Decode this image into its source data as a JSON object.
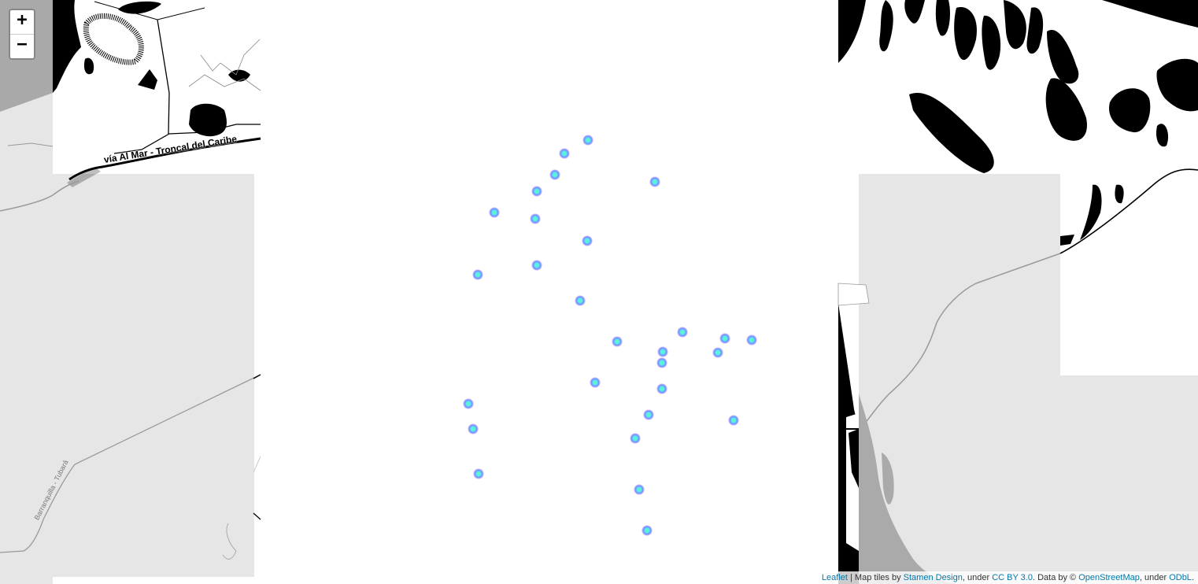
{
  "zoom_control": {
    "zoom_in_label": "+",
    "zoom_out_label": "−"
  },
  "map_labels": {
    "road_via_al_mar": "vía Al Mar - Troncal del Caribe",
    "road_barranquilla_tubara": "Barranquilla - Tubará"
  },
  "markers_count_visible": 27,
  "colors": {
    "marker_core": "#5ef2d8",
    "marker_ring": "#7a8cff",
    "link": "#0078a8",
    "tile_gray": "#e6e6e6"
  },
  "attribution": {
    "leaflet": "Leaflet",
    "sep1": " | Map tiles by ",
    "stamen": "Stamen Design",
    "sep2": ", under ",
    "ccby": "CC BY 3.0",
    "sep3": ". Data by © ",
    "osm": "OpenStreetMap",
    "sep4": ", under ",
    "odbl": "ODbL",
    "end": "."
  }
}
